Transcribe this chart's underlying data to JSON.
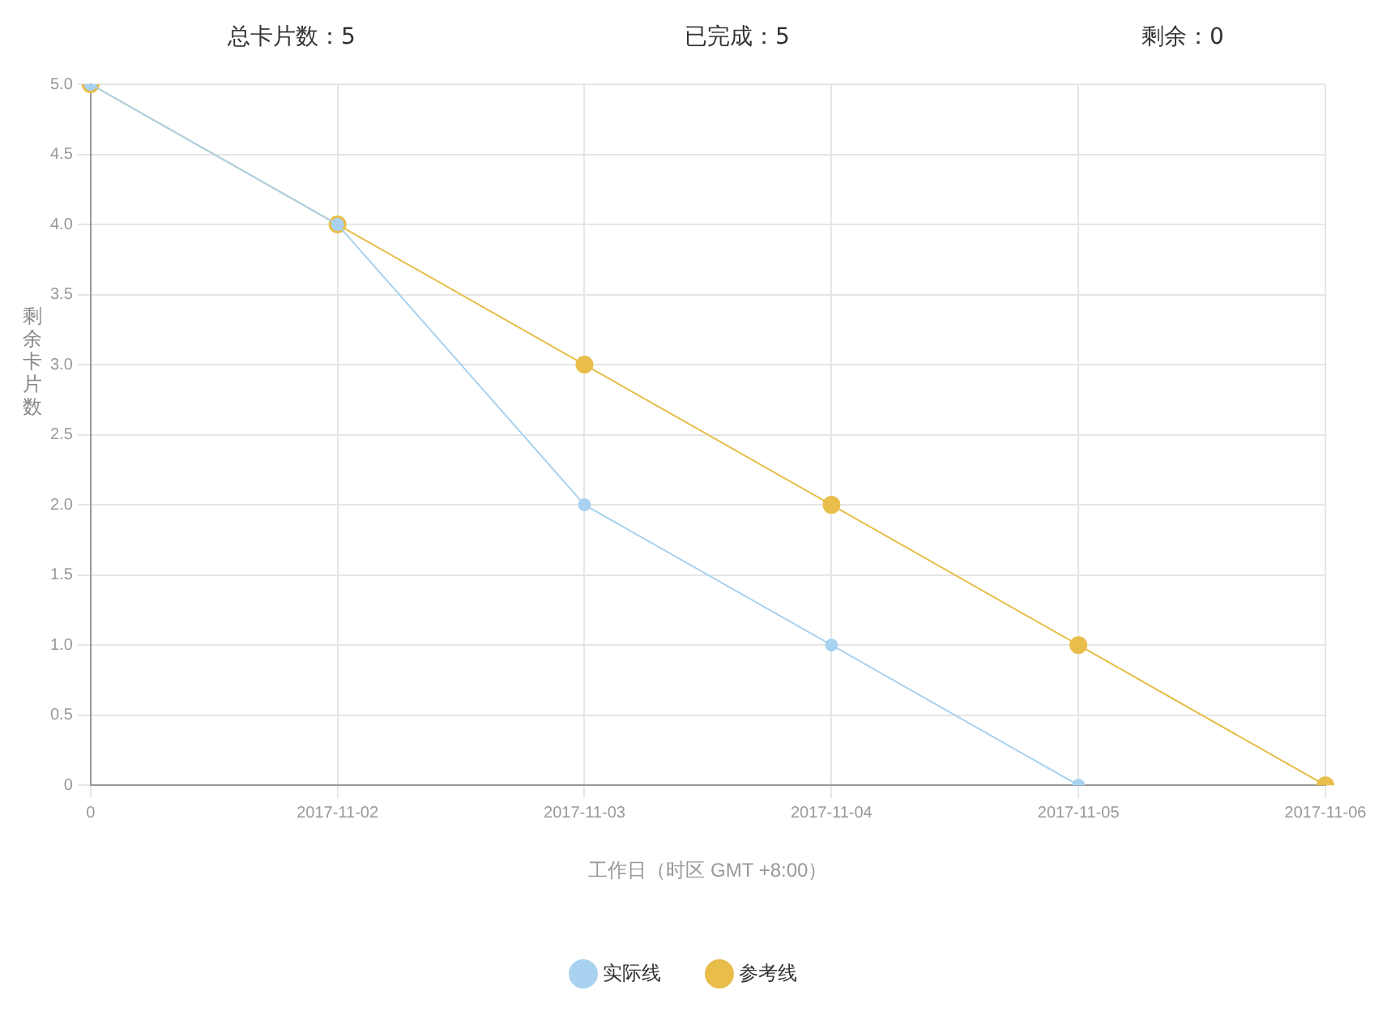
{
  "chart_data": {
    "type": "line",
    "xlabel": "工作日（时区 GMT +8:00）",
    "ylabel": "剩余卡片数",
    "annotations": [
      "总卡片数：5",
      "已完成：5",
      "剩余：0"
    ],
    "categories": [
      "0",
      "2017-11-02",
      "2017-11-03",
      "2017-11-04",
      "2017-11-05",
      "2017-11-06"
    ],
    "series": [
      {
        "name": "参考线",
        "color": "#e8bd4a",
        "values": [
          5,
          4,
          3,
          2,
          1,
          0
        ]
      },
      {
        "name": "实际线",
        "color": "#a8d2ef",
        "values": [
          5,
          4,
          2,
          1,
          0,
          null
        ]
      }
    ],
    "ylim": [
      0,
      5
    ],
    "yticks": [
      0,
      0.5,
      {
        "value": 1,
        "label": "1.0"
      },
      1.5,
      {
        "value": 2,
        "label": "2.0"
      },
      2.5,
      {
        "value": 3,
        "label": "3.0"
      },
      3.5,
      {
        "value": 4,
        "label": "4.0"
      },
      4.5,
      {
        "value": 5,
        "label": "5.0"
      }
    ],
    "grid": true,
    "legend": "bottom",
    "marker": "circle",
    "line_style": "solid"
  }
}
